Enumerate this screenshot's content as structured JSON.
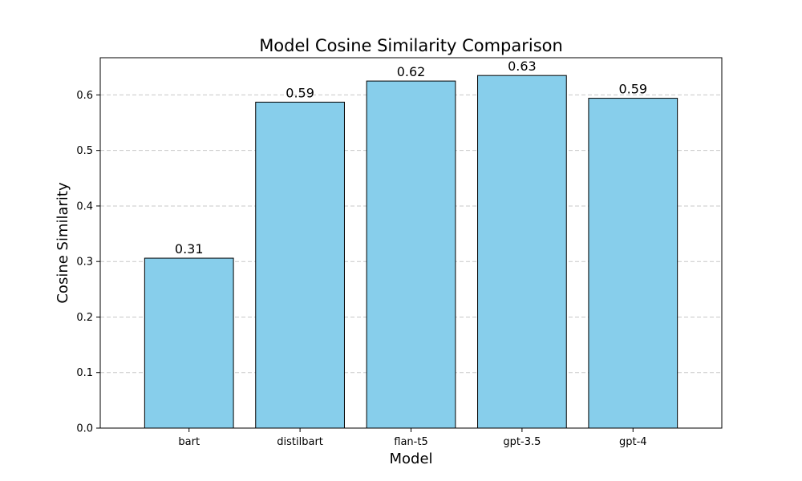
{
  "chart_data": {
    "type": "bar",
    "title": "Model Cosine Similarity Comparison",
    "xlabel": "Model",
    "ylabel": "Cosine Similarity",
    "categories": [
      "bart",
      "distilbart",
      "flan-t5",
      "gpt-3.5",
      "gpt-4"
    ],
    "values": [
      0.306,
      0.587,
      0.625,
      0.635,
      0.594
    ],
    "value_labels": [
      "0.31",
      "0.59",
      "0.62",
      "0.63",
      "0.59"
    ],
    "ylim": [
      0,
      0.667
    ],
    "yticks": [
      0.0,
      0.1,
      0.2,
      0.3,
      0.4,
      0.5,
      0.6
    ],
    "ytick_labels": [
      "0.0",
      "0.1",
      "0.2",
      "0.3",
      "0.4",
      "0.5",
      "0.6"
    ],
    "grid": "y-dashed",
    "legend": "none",
    "colors": {
      "bar_fill": "#87CEEB",
      "bar_edge": "#000000",
      "grid": "#c8c8c8"
    }
  }
}
